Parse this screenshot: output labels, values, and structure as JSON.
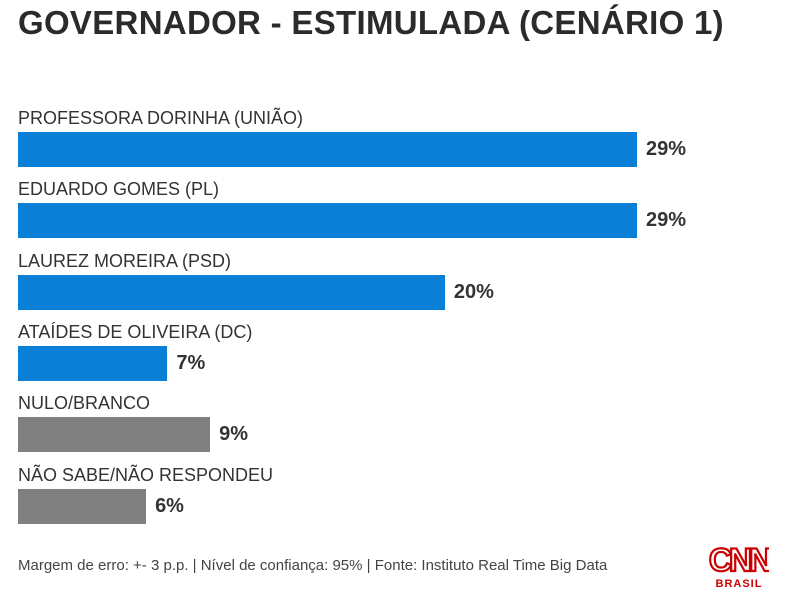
{
  "title": "GOVERNADOR - ESTIMULADA (CENÁRIO 1)",
  "chart_data": {
    "type": "bar",
    "orientation": "horizontal",
    "title": "GOVERNADOR - ESTIMULADA (CENÁRIO 1)",
    "categories": [
      "PROFESSORA DORINHA (UNIÃO)",
      "EDUARDO GOMES (PL)",
      "LAUREZ MOREIRA (PSD)",
      "ATAÍDES DE OLIVEIRA (DC)",
      "NULO/BRANCO",
      "NÃO SABE/NÃO RESPONDEU"
    ],
    "values": [
      29,
      29,
      20,
      7,
      9,
      6
    ],
    "labels": [
      "29%",
      "29%",
      "20%",
      "7%",
      "9%",
      "6%"
    ],
    "colors": [
      "#0a7fd6",
      "#0a7fd6",
      "#0a7fd6",
      "#0a7fd6",
      "#808080",
      "#808080"
    ],
    "xlim": [
      0,
      29
    ]
  },
  "footer": "Margem de erro: +- 3 p.p. | Nível de confiança: 95% | Fonte: Instituto Real Time Big Data",
  "logo": {
    "text": "CNN",
    "sub": "BRASIL",
    "color": "#cc0000"
  }
}
